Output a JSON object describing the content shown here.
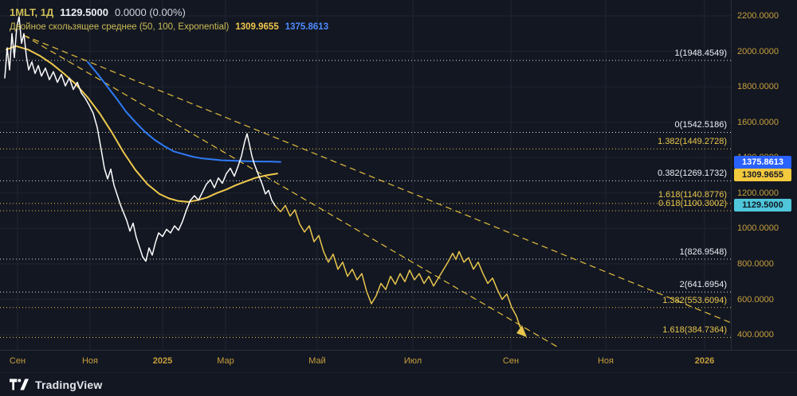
{
  "header": {
    "symbol": "1MLT, 1Д",
    "last_price": "1129.5000",
    "change": "0.0000 (0.00%)",
    "indicator": {
      "name": "Двойное скользящее среднее (50, 100, Exponential)",
      "ema50_value": "1309.9655",
      "ema100_value": "1375.8613"
    }
  },
  "price_axis": {
    "labels": [
      "2200.0000",
      "2000.0000",
      "1800.0000",
      "1600.0000",
      "1400.0000",
      "1200.0000",
      "1000.0000",
      "800.0000",
      "600.0000",
      "400.0000"
    ],
    "badges": [
      {
        "text": "1375.8613",
        "color": "#2962ff",
        "series": "ema100"
      },
      {
        "text": "1309.9655",
        "color": "#f3c93d",
        "series": "ema50"
      },
      {
        "text": "1129.5000",
        "color": "#4fc6da",
        "series": "last-price"
      }
    ]
  },
  "time_axis": {
    "labels": [
      "Сен",
      "Ноя",
      "2025",
      "Мар",
      "Май",
      "Июл",
      "Сен",
      "Ноя",
      "2026"
    ]
  },
  "fib": {
    "levels": [
      {
        "label": "1(1948.4549)",
        "price": 1948.4549,
        "color": "white"
      },
      {
        "label": "0(1542.5186)",
        "price": 1542.5186,
        "color": "white"
      },
      {
        "label": "1.382(1449.2728)",
        "price": 1449.2728,
        "color": "yellow"
      },
      {
        "label": "0.382(1269.1732)",
        "price": 1269.1732,
        "color": "white"
      },
      {
        "label": "1.618(1140.8776)",
        "price": 1140.8776,
        "color": "yellow"
      },
      {
        "label": "0.618(1100.3002)",
        "price": 1100.3002,
        "color": "yellow"
      },
      {
        "label": "1(826.9548)",
        "price": 826.9548,
        "color": "white"
      },
      {
        "label": "2(641.6954)",
        "price": 641.6954,
        "color": "white"
      },
      {
        "label": "1.382(553.6094)",
        "price": 553.6094,
        "color": "yellow"
      },
      {
        "label": "1.618(384.7364)",
        "price": 384.7364,
        "color": "yellow"
      }
    ]
  },
  "footer": {
    "brand": "TradingView"
  },
  "chart_data": {
    "type": "line",
    "title": "1MLT 1Д — Double EMA (50, 100, Exponential) with Fibonacci levels",
    "ylim": [
      330,
      2250
    ],
    "y_ticks": [
      2200,
      2000,
      1800,
      1600,
      1400,
      1200,
      1000,
      800,
      600,
      400
    ],
    "x_grid": [
      22,
      113,
      204,
      283,
      398,
      518,
      641,
      760,
      884
    ],
    "x_axis_labels": [
      "Сен",
      "Ноя",
      "2025",
      "Мар",
      "Май",
      "Июл",
      "Сен",
      "Ноя",
      "2026"
    ],
    "legend_position": "top-left",
    "grid": true,
    "colors": {
      "background": "#131722",
      "grid": "#1f2433",
      "price_line": "#ffffff",
      "projection_line": "#e9c64d",
      "ema50_line": "#efc94c",
      "ema100_line": "#2e7bf6",
      "fib_white": "#dfe3ea",
      "fib_yellow": "#e9c64d",
      "axis_text": "#c7a03c",
      "projection_arrow": "#e9c64d"
    },
    "current_values": {
      "last_price": 1129.5,
      "ema50": 1309.9655,
      "ema100": 1375.8613
    },
    "fib_levels": [
      {
        "price": 1948.4549,
        "color": "#dfe3ea"
      },
      {
        "price": 1542.5186,
        "color": "#dfe3ea"
      },
      {
        "price": 1449.2728,
        "color": "#e9c64d"
      },
      {
        "price": 1269.1732,
        "color": "#dfe3ea"
      },
      {
        "price": 1140.8776,
        "color": "#e9c64d"
      },
      {
        "price": 1100.3002,
        "color": "#e9c64d"
      },
      {
        "price": 826.9548,
        "color": "#dfe3ea"
      },
      {
        "price": 641.6954,
        "color": "#dfe3ea"
      },
      {
        "price": 553.6094,
        "color": "#e9c64d"
      },
      {
        "price": 384.7364,
        "color": "#e9c64d"
      }
    ],
    "series": [
      {
        "name": "trendline-1",
        "color": "#e3bf3e",
        "width": 1.2,
        "dash": "7,6",
        "points": [
          [
            30,
            2090
          ],
          [
            700,
            330
          ]
        ]
      },
      {
        "name": "trendline-2",
        "color": "#e3bf3e",
        "width": 1.2,
        "dash": "7,6",
        "points": [
          [
            30,
            2090
          ],
          [
            916,
            470
          ]
        ]
      },
      {
        "name": "ema-50",
        "color": "#efc94c",
        "width": 2,
        "points": [
          [
            8,
            2010
          ],
          [
            20,
            2030
          ],
          [
            35,
            2010
          ],
          [
            50,
            1975
          ],
          [
            65,
            1930
          ],
          [
            80,
            1875
          ],
          [
            95,
            1815
          ],
          [
            110,
            1740
          ],
          [
            125,
            1650
          ],
          [
            140,
            1545
          ],
          [
            155,
            1430
          ],
          [
            170,
            1330
          ],
          [
            185,
            1250
          ],
          [
            200,
            1195
          ],
          [
            212,
            1170
          ],
          [
            224,
            1155
          ],
          [
            236,
            1150
          ],
          [
            248,
            1160
          ],
          [
            260,
            1175
          ],
          [
            272,
            1200
          ],
          [
            284,
            1220
          ],
          [
            296,
            1245
          ],
          [
            308,
            1265
          ],
          [
            320,
            1285
          ],
          [
            334,
            1300
          ],
          [
            348,
            1309.97
          ]
        ]
      },
      {
        "name": "ema-100",
        "color": "#2e7bf6",
        "width": 2,
        "points": [
          [
            110,
            1940
          ],
          [
            122,
            1875
          ],
          [
            134,
            1805
          ],
          [
            146,
            1735
          ],
          [
            158,
            1660
          ],
          [
            170,
            1600
          ],
          [
            182,
            1545
          ],
          [
            194,
            1500
          ],
          [
            206,
            1465
          ],
          [
            218,
            1435
          ],
          [
            230,
            1420
          ],
          [
            242,
            1405
          ],
          [
            254,
            1395
          ],
          [
            266,
            1390
          ],
          [
            278,
            1385
          ],
          [
            290,
            1383
          ],
          [
            302,
            1381
          ],
          [
            314,
            1379
          ],
          [
            326,
            1378
          ],
          [
            340,
            1377
          ],
          [
            352,
            1375.86
          ]
        ]
      },
      {
        "name": "price-projection",
        "color": "#e9c64d",
        "width": 1.5,
        "points": [
          [
            345,
            1130
          ],
          [
            352,
            1095
          ],
          [
            358,
            1130
          ],
          [
            364,
            1070
          ],
          [
            370,
            1105
          ],
          [
            376,
            1025
          ],
          [
            382,
            980
          ],
          [
            388,
            1015
          ],
          [
            394,
            925
          ],
          [
            400,
            960
          ],
          [
            406,
            870
          ],
          [
            412,
            810
          ],
          [
            418,
            855
          ],
          [
            424,
            770
          ],
          [
            430,
            810
          ],
          [
            436,
            730
          ],
          [
            442,
            770
          ],
          [
            448,
            710
          ],
          [
            454,
            745
          ],
          [
            460,
            645
          ],
          [
            466,
            575
          ],
          [
            472,
            620
          ],
          [
            478,
            690
          ],
          [
            484,
            655
          ],
          [
            490,
            730
          ],
          [
            496,
            685
          ],
          [
            502,
            745
          ],
          [
            508,
            700
          ],
          [
            514,
            765
          ],
          [
            520,
            710
          ],
          [
            526,
            745
          ],
          [
            532,
            690
          ],
          [
            538,
            730
          ],
          [
            544,
            675
          ],
          [
            550,
            720
          ],
          [
            556,
            765
          ],
          [
            562,
            810
          ],
          [
            568,
            860
          ],
          [
            572,
            825
          ],
          [
            576,
            870
          ],
          [
            582,
            810
          ],
          [
            588,
            835
          ],
          [
            594,
            770
          ],
          [
            600,
            810
          ],
          [
            606,
            745
          ],
          [
            612,
            690
          ],
          [
            618,
            720
          ],
          [
            624,
            655
          ],
          [
            630,
            600
          ],
          [
            636,
            630
          ],
          [
            642,
            555
          ],
          [
            648,
            505
          ],
          [
            652,
            450
          ],
          [
            656,
            415
          ]
        ]
      },
      {
        "name": "price",
        "color": "#ffffff",
        "width": 1.5,
        "points": [
          [
            6,
            1850
          ],
          [
            9,
            2020
          ],
          [
            12,
            1895
          ],
          [
            15,
            2100
          ],
          [
            18,
            1965
          ],
          [
            21,
            2135
          ],
          [
            24,
            2195
          ],
          [
            27,
            2045
          ],
          [
            30,
            2100
          ],
          [
            33,
            1975
          ],
          [
            36,
            1895
          ],
          [
            40,
            1940
          ],
          [
            44,
            1875
          ],
          [
            48,
            1920
          ],
          [
            52,
            1860
          ],
          [
            57,
            1905
          ],
          [
            62,
            1840
          ],
          [
            67,
            1885
          ],
          [
            72,
            1825
          ],
          [
            77,
            1870
          ],
          [
            82,
            1805
          ],
          [
            87,
            1850
          ],
          [
            92,
            1785
          ],
          [
            97,
            1825
          ],
          [
            102,
            1765
          ],
          [
            107,
            1735
          ],
          [
            112,
            1695
          ],
          [
            117,
            1650
          ],
          [
            122,
            1570
          ],
          [
            127,
            1445
          ],
          [
            131,
            1340
          ],
          [
            135,
            1280
          ],
          [
            139,
            1335
          ],
          [
            143,
            1245
          ],
          [
            147,
            1190
          ],
          [
            151,
            1135
          ],
          [
            155,
            1090
          ],
          [
            159,
            1045
          ],
          [
            163,
            985
          ],
          [
            167,
            1030
          ],
          [
            171,
            950
          ],
          [
            175,
            895
          ],
          [
            179,
            840
          ],
          [
            183,
            815
          ],
          [
            187,
            890
          ],
          [
            191,
            850
          ],
          [
            195,
            920
          ],
          [
            199,
            975
          ],
          [
            204,
            955
          ],
          [
            209,
            995
          ],
          [
            214,
            975
          ],
          [
            219,
            1015
          ],
          [
            224,
            990
          ],
          [
            229,
            1040
          ],
          [
            234,
            1105
          ],
          [
            239,
            1160
          ],
          [
            244,
            1185
          ],
          [
            249,
            1160
          ],
          [
            254,
            1205
          ],
          [
            259,
            1250
          ],
          [
            264,
            1275
          ],
          [
            269,
            1230
          ],
          [
            274,
            1285
          ],
          [
            279,
            1255
          ],
          [
            284,
            1310
          ],
          [
            289,
            1340
          ],
          [
            294,
            1295
          ],
          [
            299,
            1355
          ],
          [
            303,
            1410
          ],
          [
            307,
            1490
          ],
          [
            310,
            1535
          ],
          [
            313,
            1475
          ],
          [
            316,
            1410
          ],
          [
            319,
            1365
          ],
          [
            322,
            1330
          ],
          [
            325,
            1295
          ],
          [
            329,
            1250
          ],
          [
            333,
            1195
          ],
          [
            337,
            1215
          ],
          [
            341,
            1160
          ],
          [
            345,
            1129.5
          ]
        ]
      }
    ]
  }
}
